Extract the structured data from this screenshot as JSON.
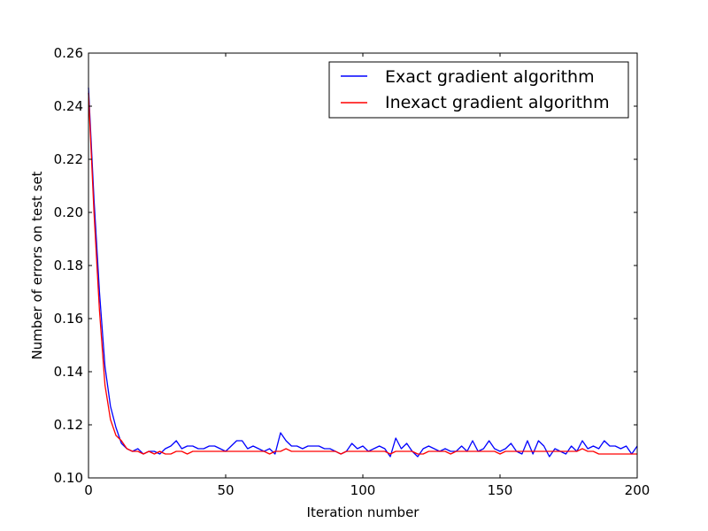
{
  "chart_data": {
    "type": "line",
    "xlabel": "Iteration number",
    "ylabel": "Number of errors on test set",
    "xlim": [
      0,
      200
    ],
    "ylim": [
      0.1,
      0.26
    ],
    "xticks": [
      "0",
      "50",
      "100",
      "150",
      "200"
    ],
    "yticks": [
      "0.10",
      "0.12",
      "0.14",
      "0.16",
      "0.18",
      "0.20",
      "0.22",
      "0.24",
      "0.26"
    ],
    "grid": false,
    "legend_position": "top-right",
    "series": [
      {
        "name": "Exact gradient algorithm",
        "color": "#0000ff",
        "x": [
          0,
          2,
          4,
          6,
          8,
          10,
          12,
          14,
          16,
          18,
          20,
          22,
          24,
          26,
          28,
          30,
          32,
          34,
          36,
          38,
          40,
          42,
          44,
          46,
          48,
          50,
          52,
          54,
          56,
          58,
          60,
          62,
          64,
          66,
          68,
          70,
          72,
          74,
          76,
          78,
          80,
          82,
          84,
          86,
          88,
          90,
          92,
          94,
          96,
          98,
          100,
          102,
          104,
          106,
          108,
          110,
          112,
          114,
          116,
          118,
          120,
          122,
          124,
          126,
          128,
          130,
          132,
          134,
          136,
          138,
          140,
          142,
          144,
          146,
          148,
          150,
          152,
          154,
          156,
          158,
          160,
          162,
          164,
          166,
          168,
          170,
          172,
          174,
          176,
          178,
          180,
          182,
          184,
          186,
          188,
          190,
          192,
          194,
          196,
          198,
          200
        ],
        "values": [
          0.247,
          0.205,
          0.17,
          0.142,
          0.127,
          0.119,
          0.113,
          0.111,
          0.11,
          0.111,
          0.109,
          0.11,
          0.11,
          0.109,
          0.111,
          0.112,
          0.114,
          0.111,
          0.112,
          0.112,
          0.111,
          0.111,
          0.112,
          0.112,
          0.111,
          0.11,
          0.112,
          0.114,
          0.114,
          0.111,
          0.112,
          0.111,
          0.11,
          0.111,
          0.109,
          0.117,
          0.114,
          0.112,
          0.112,
          0.111,
          0.112,
          0.112,
          0.112,
          0.111,
          0.111,
          0.11,
          0.109,
          0.11,
          0.113,
          0.111,
          0.112,
          0.11,
          0.111,
          0.112,
          0.111,
          0.108,
          0.115,
          0.111,
          0.113,
          0.11,
          0.108,
          0.111,
          0.112,
          0.111,
          0.11,
          0.111,
          0.11,
          0.11,
          0.112,
          0.11,
          0.114,
          0.11,
          0.111,
          0.114,
          0.111,
          0.11,
          0.111,
          0.113,
          0.11,
          0.109,
          0.114,
          0.109,
          0.114,
          0.112,
          0.108,
          0.111,
          0.11,
          0.109,
          0.112,
          0.11,
          0.114,
          0.111,
          0.112,
          0.111,
          0.114,
          0.112,
          0.112,
          0.111,
          0.112,
          0.109,
          0.112
        ]
      },
      {
        "name": "Inexact gradient algorithm",
        "color": "#ff0000",
        "x": [
          0,
          2,
          4,
          6,
          8,
          10,
          12,
          14,
          16,
          18,
          20,
          22,
          24,
          26,
          28,
          30,
          32,
          34,
          36,
          38,
          40,
          42,
          44,
          46,
          48,
          50,
          52,
          54,
          56,
          58,
          60,
          62,
          64,
          66,
          68,
          70,
          72,
          74,
          76,
          78,
          80,
          82,
          84,
          86,
          88,
          90,
          92,
          94,
          96,
          98,
          100,
          102,
          104,
          106,
          108,
          110,
          112,
          114,
          116,
          118,
          120,
          122,
          124,
          126,
          128,
          130,
          132,
          134,
          136,
          138,
          140,
          142,
          144,
          146,
          148,
          150,
          152,
          154,
          156,
          158,
          160,
          162,
          164,
          166,
          168,
          170,
          172,
          174,
          176,
          178,
          180,
          182,
          184,
          186,
          188,
          190,
          192,
          194,
          196,
          198,
          200
        ],
        "values": [
          0.245,
          0.2,
          0.163,
          0.135,
          0.122,
          0.116,
          0.114,
          0.111,
          0.11,
          0.11,
          0.109,
          0.11,
          0.109,
          0.11,
          0.109,
          0.109,
          0.11,
          0.11,
          0.109,
          0.11,
          0.11,
          0.11,
          0.11,
          0.11,
          0.11,
          0.11,
          0.11,
          0.11,
          0.11,
          0.11,
          0.11,
          0.11,
          0.11,
          0.109,
          0.11,
          0.11,
          0.111,
          0.11,
          0.11,
          0.11,
          0.11,
          0.11,
          0.11,
          0.11,
          0.11,
          0.11,
          0.109,
          0.11,
          0.11,
          0.11,
          0.11,
          0.11,
          0.11,
          0.11,
          0.11,
          0.109,
          0.11,
          0.11,
          0.11,
          0.11,
          0.109,
          0.109,
          0.11,
          0.11,
          0.11,
          0.11,
          0.109,
          0.11,
          0.11,
          0.11,
          0.11,
          0.11,
          0.11,
          0.11,
          0.11,
          0.109,
          0.11,
          0.11,
          0.11,
          0.11,
          0.11,
          0.11,
          0.11,
          0.11,
          0.11,
          0.11,
          0.11,
          0.11,
          0.11,
          0.11,
          0.111,
          0.11,
          0.11,
          0.109,
          0.109,
          0.109,
          0.109,
          0.109,
          0.109,
          0.109,
          0.109
        ]
      }
    ]
  }
}
